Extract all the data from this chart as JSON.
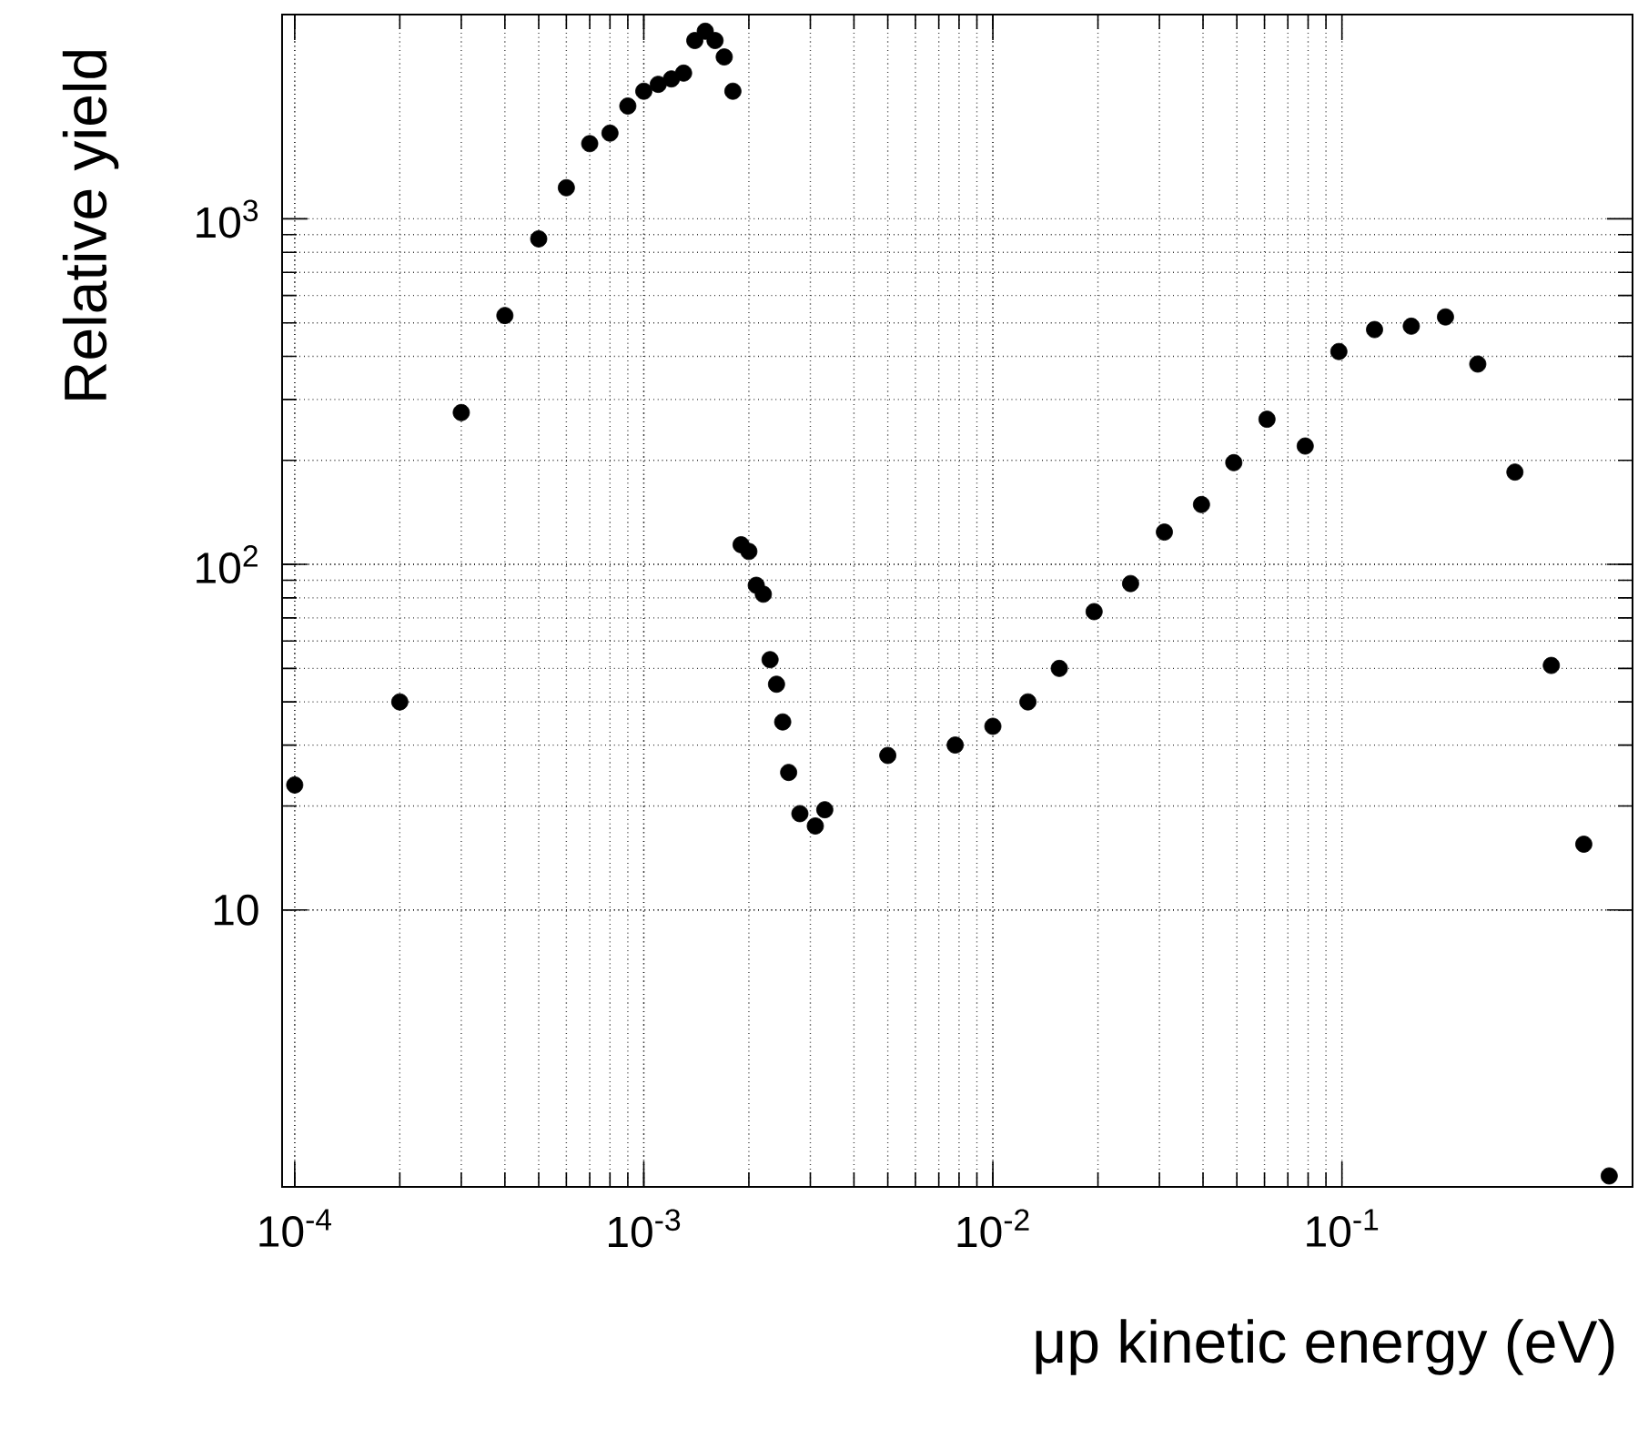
{
  "chart_data": {
    "type": "scatter",
    "xlabel": "μp kinetic energy (eV)",
    "ylabel": "Relative yield",
    "log": "xy",
    "grid": true,
    "color": "#000000",
    "xlim": [
      9.2e-05,
      0.68
    ],
    "ylim": [
      1.58,
      3900
    ],
    "xticks": [
      {
        "value": 0.0001,
        "label": "10$^{-4}$"
      },
      {
        "value": 0.001,
        "label": "10$^{-3}$"
      },
      {
        "value": 0.01,
        "label": "10$^{-2}$"
      },
      {
        "value": 0.1,
        "label": "10$^{-1}$"
      }
    ],
    "yticks": [
      10,
      {
        "value": 100,
        "label": "10$^{2}$"
      },
      {
        "value": 1000,
        "label": "10$^{3}$"
      }
    ],
    "x": [
      0.0001,
      0.0002,
      0.0003,
      0.0004,
      0.0005,
      0.0006,
      0.0007,
      0.0008,
      0.0009,
      0.001,
      0.0011,
      0.0012,
      0.0013,
      0.0014,
      0.0015,
      0.0016,
      0.0017,
      0.0018,
      0.0019,
      0.002,
      0.0021,
      0.0022,
      0.0023,
      0.0024,
      0.0025,
      0.0026,
      0.0028,
      0.0031,
      0.0033,
      0.005,
      0.0078,
      0.01,
      0.0126,
      0.0155,
      0.0195,
      0.0248,
      0.031,
      0.0396,
      0.049,
      0.061,
      0.0785,
      0.098,
      0.124,
      0.158,
      0.198,
      0.245,
      0.313,
      0.398,
      0.493,
      0.583
    ],
    "values": [
      23,
      40,
      275,
      525,
      875,
      1230,
      1650,
      1770,
      2120,
      2340,
      2450,
      2540,
      2640,
      3280,
      3490,
      3280,
      2940,
      2340,
      114,
      109,
      87,
      82,
      53,
      45,
      35,
      25,
      19,
      17.5,
      19.5,
      28,
      30,
      34,
      40,
      50,
      73,
      88,
      124,
      149,
      197,
      263,
      220,
      413,
      478,
      489,
      520,
      380,
      185,
      51,
      15.5,
      1.7
    ]
  }
}
